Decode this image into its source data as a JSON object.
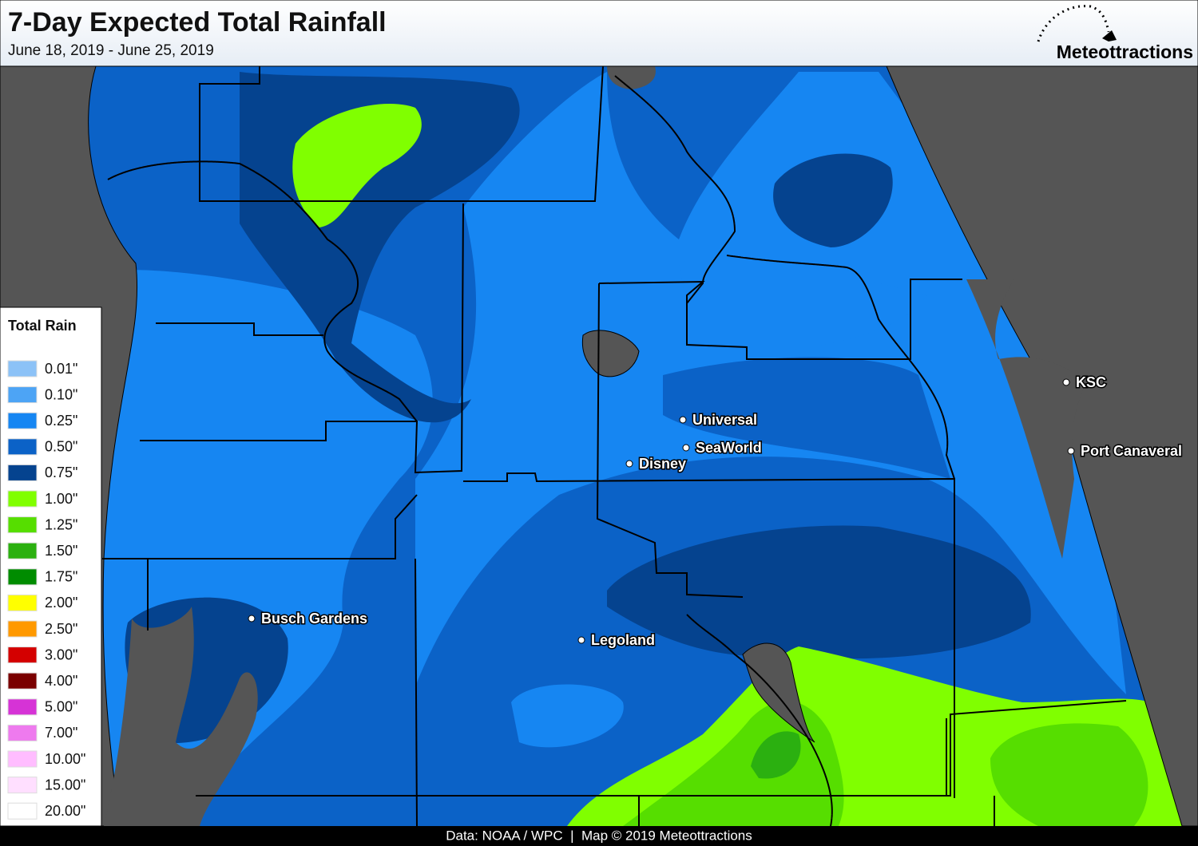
{
  "header": {
    "title": "7-Day Expected Total Rainfall",
    "subtitle": "June 18, 2019 - June 25, 2019",
    "logo": "Meteottractions"
  },
  "legend": {
    "title": "Total Rain",
    "items": [
      {
        "label": "0.01\"",
        "color": "#8cc2f7"
      },
      {
        "label": "0.10\"",
        "color": "#4da4f5"
      },
      {
        "label": "0.25\"",
        "color": "#1686f2"
      },
      {
        "label": "0.50\"",
        "color": "#0b62c7"
      },
      {
        "label": "0.75\"",
        "color": "#05438f"
      },
      {
        "label": "1.00\"",
        "color": "#80ff00"
      },
      {
        "label": "1.25\"",
        "color": "#56de00"
      },
      {
        "label": "1.50\"",
        "color": "#2bb010"
      },
      {
        "label": "1.75\"",
        "color": "#008c00"
      },
      {
        "label": "2.00\"",
        "color": "#ffff00"
      },
      {
        "label": "2.50\"",
        "color": "#ff9900"
      },
      {
        "label": "3.00\"",
        "color": "#d40000"
      },
      {
        "label": "4.00\"",
        "color": "#7a0000"
      },
      {
        "label": "5.00\"",
        "color": "#d633d6"
      },
      {
        "label": "7.00\"",
        "color": "#ee7aee"
      },
      {
        "label": "10.00\"",
        "color": "#ffbdff"
      },
      {
        "label": "15.00\"",
        "color": "#ffdfff"
      },
      {
        "label": "20.00\"",
        "color": "#ffffff"
      }
    ]
  },
  "places": [
    "Universal",
    "SeaWorld",
    "Disney",
    "KSC",
    "Port Canaveral",
    "Busch Gardens",
    "Legoland"
  ],
  "footer": "Data: NOAA / WPC  |  Map © 2019 Meteottractions"
}
